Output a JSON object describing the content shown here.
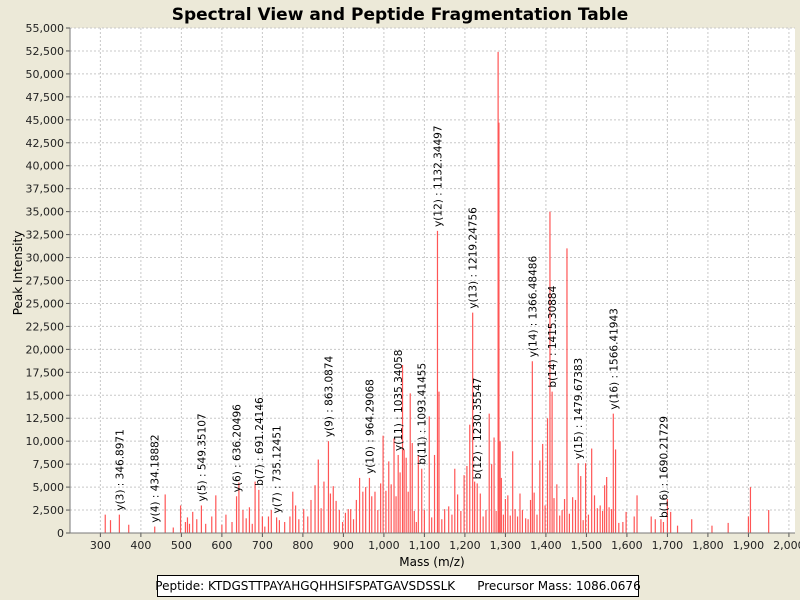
{
  "chart_data": {
    "type": "bar",
    "title": "Spectral View and Peptide Fragmentation Table",
    "xlabel": "Mass (m/z)",
    "ylabel": "Peak Intensity",
    "xlim": [
      225,
      2015
    ],
    "ylim": [
      0,
      55000
    ],
    "x_ticks": [
      300,
      400,
      500,
      600,
      700,
      800,
      900,
      1000,
      1100,
      1200,
      1300,
      1400,
      1500,
      1600,
      1700,
      1800,
      1900,
      2000
    ],
    "x_tick_labels": [
      "300",
      "400",
      "500",
      "600",
      "700",
      "800",
      "900",
      "1,000",
      "1,100",
      "1,200",
      "1,300",
      "1,400",
      "1,500",
      "1,600",
      "1,700",
      "1,800",
      "1,900",
      "2,000"
    ],
    "y_ticks": [
      0,
      2500,
      5000,
      7500,
      10000,
      12500,
      15000,
      17500,
      20000,
      22500,
      25000,
      27500,
      30000,
      32500,
      35000,
      37500,
      40000,
      42500,
      45000,
      47500,
      50000,
      52500,
      55000
    ],
    "y_tick_labels": [
      "0",
      "2,500",
      "5,000",
      "7,500",
      "10,000",
      "12,500",
      "15,000",
      "17,500",
      "20,000",
      "22,500",
      "25,000",
      "27,500",
      "30,000",
      "32,500",
      "35,000",
      "37,500",
      "40,000",
      "42,500",
      "45,000",
      "47,500",
      "50,000",
      "52,500",
      "55,000"
    ],
    "color": "#FF5555",
    "peaks": [
      [
        312,
        2000
      ],
      [
        325,
        1400
      ],
      [
        346.9,
        2000
      ],
      [
        370,
        900
      ],
      [
        434.2,
        700
      ],
      [
        460,
        4200
      ],
      [
        480,
        600
      ],
      [
        498,
        3000
      ],
      [
        510,
        1200
      ],
      [
        515,
        1700
      ],
      [
        520,
        1000
      ],
      [
        528,
        2300
      ],
      [
        538,
        1500
      ],
      [
        549.4,
        3000
      ],
      [
        560,
        1000
      ],
      [
        575,
        1800
      ],
      [
        585,
        4100
      ],
      [
        600,
        900
      ],
      [
        610,
        2000
      ],
      [
        625,
        1200
      ],
      [
        636.2,
        4000
      ],
      [
        642,
        5500
      ],
      [
        652,
        2500
      ],
      [
        660,
        1600
      ],
      [
        668,
        2800
      ],
      [
        675,
        1000
      ],
      [
        682,
        5600
      ],
      [
        691.2,
        4700
      ],
      [
        700,
        1800
      ],
      [
        706,
        700
      ],
      [
        715,
        1800
      ],
      [
        722,
        2500
      ],
      [
        735.1,
        1700
      ],
      [
        742,
        1400
      ],
      [
        755,
        1200
      ],
      [
        768,
        1800
      ],
      [
        775,
        4500
      ],
      [
        782,
        3000
      ],
      [
        790,
        1500
      ],
      [
        802,
        2600
      ],
      [
        812,
        1800
      ],
      [
        820,
        3600
      ],
      [
        830,
        5200
      ],
      [
        838,
        8000
      ],
      [
        845,
        2700
      ],
      [
        852,
        5600
      ],
      [
        863.1,
        10000
      ],
      [
        868,
        4300
      ],
      [
        875,
        5100
      ],
      [
        882,
        3500
      ],
      [
        890,
        2500
      ],
      [
        898,
        1200
      ],
      [
        905,
        2200
      ],
      [
        912,
        2600
      ],
      [
        918,
        2600
      ],
      [
        925,
        1500
      ],
      [
        932,
        3600
      ],
      [
        940,
        6000
      ],
      [
        948,
        4500
      ],
      [
        955,
        5000
      ],
      [
        964.3,
        6000
      ],
      [
        970,
        4000
      ],
      [
        978,
        4500
      ],
      [
        985,
        2500
      ],
      [
        992,
        5400
      ],
      [
        998,
        10600
      ],
      [
        1005,
        4600
      ],
      [
        1012,
        7800
      ],
      [
        1018,
        5300
      ],
      [
        1025,
        10300
      ],
      [
        1030,
        4000
      ],
      [
        1035.3,
        8500
      ],
      [
        1040,
        6600
      ],
      [
        1046,
        18300
      ],
      [
        1050,
        9100
      ],
      [
        1055,
        8200
      ],
      [
        1060,
        4500
      ],
      [
        1065,
        15200
      ],
      [
        1070,
        9800
      ],
      [
        1075,
        2400
      ],
      [
        1080,
        1200
      ],
      [
        1085,
        8500
      ],
      [
        1093.4,
        7000
      ],
      [
        1100,
        2500
      ],
      [
        1112,
        12700
      ],
      [
        1118,
        1700
      ],
      [
        1125,
        8500
      ],
      [
        1132.3,
        32900
      ],
      [
        1136,
        15400
      ],
      [
        1143,
        1500
      ],
      [
        1150,
        2600
      ],
      [
        1160,
        2900
      ],
      [
        1168,
        2000
      ],
      [
        1175,
        7000
      ],
      [
        1182,
        4200
      ],
      [
        1190,
        2400
      ],
      [
        1198,
        6300
      ],
      [
        1205,
        7300
      ],
      [
        1212,
        11800
      ],
      [
        1219.2,
        24000
      ],
      [
        1224,
        5600
      ],
      [
        1230.4,
        5400
      ],
      [
        1238,
        4300
      ],
      [
        1245,
        1800
      ],
      [
        1252,
        2500
      ],
      [
        1260,
        13000
      ],
      [
        1266,
        7500
      ],
      [
        1272,
        10400
      ],
      [
        1277,
        2400
      ],
      [
        1282,
        52400
      ],
      [
        1284,
        44700
      ],
      [
        1287,
        10000
      ],
      [
        1290,
        6000
      ],
      [
        1295,
        2000
      ],
      [
        1300,
        3700
      ],
      [
        1306,
        4100
      ],
      [
        1312,
        1900
      ],
      [
        1318,
        8900
      ],
      [
        1324,
        2600
      ],
      [
        1330,
        1800
      ],
      [
        1336,
        4300
      ],
      [
        1342,
        2500
      ],
      [
        1350,
        1600
      ],
      [
        1356,
        1500
      ],
      [
        1362,
        3600
      ],
      [
        1366.5,
        18700
      ],
      [
        1371,
        4400
      ],
      [
        1378,
        2000
      ],
      [
        1385,
        7900
      ],
      [
        1392,
        9700
      ],
      [
        1398,
        3000
      ],
      [
        1404,
        12500
      ],
      [
        1410,
        35000
      ],
      [
        1415.3,
        15400
      ],
      [
        1420,
        3800
      ],
      [
        1427,
        5300
      ],
      [
        1434,
        1900
      ],
      [
        1440,
        2500
      ],
      [
        1446,
        3700
      ],
      [
        1452,
        31000
      ],
      [
        1458,
        2100
      ],
      [
        1466,
        3900
      ],
      [
        1473,
        3600
      ],
      [
        1479.7,
        7600
      ],
      [
        1486,
        6200
      ],
      [
        1492,
        1400
      ],
      [
        1498,
        7600
      ],
      [
        1505,
        2000
      ],
      [
        1513,
        9200
      ],
      [
        1520,
        4100
      ],
      [
        1527,
        2700
      ],
      [
        1534,
        3000
      ],
      [
        1540,
        2400
      ],
      [
        1545,
        5200
      ],
      [
        1550,
        6100
      ],
      [
        1556,
        2800
      ],
      [
        1562,
        2600
      ],
      [
        1566.4,
        13000
      ],
      [
        1572,
        9100
      ],
      [
        1580,
        1100
      ],
      [
        1590,
        1200
      ],
      [
        1598,
        2300
      ],
      [
        1618,
        1800
      ],
      [
        1625,
        4100
      ],
      [
        1660,
        1800
      ],
      [
        1670,
        1500
      ],
      [
        1684,
        1500
      ],
      [
        1690.2,
        1200
      ],
      [
        1700,
        3700
      ],
      [
        1708,
        2300
      ],
      [
        1725,
        800
      ],
      [
        1760,
        1500
      ],
      [
        1810,
        800
      ],
      [
        1850,
        1100
      ],
      [
        1900,
        1800
      ],
      [
        1905,
        5000
      ],
      [
        1950,
        2500
      ]
    ],
    "annotations": [
      {
        "x": 346.9,
        "y": 2000,
        "text": "y(3) : 346.8971"
      },
      {
        "x": 434.2,
        "y": 700,
        "text": "y(4) : 434.18882"
      },
      {
        "x": 549.4,
        "y": 3000,
        "text": "y(5) : 549.35107"
      },
      {
        "x": 636.2,
        "y": 4000,
        "text": "y(6) : 636.20496"
      },
      {
        "x": 691.2,
        "y": 4700,
        "text": "b(7) : 691.24146"
      },
      {
        "x": 735.1,
        "y": 1700,
        "text": "y(7) : 735.12451"
      },
      {
        "x": 863.1,
        "y": 10000,
        "text": "y(9) : 863.0874"
      },
      {
        "x": 964.3,
        "y": 6000,
        "text": "y(10) : 964.29068"
      },
      {
        "x": 1035.3,
        "y": 8500,
        "text": "y(11) : 1035.34058"
      },
      {
        "x": 1093.4,
        "y": 7000,
        "text": "b(11) : 1093.41455"
      },
      {
        "x": 1132.3,
        "y": 32900,
        "text": "y(12) : 1132.34497"
      },
      {
        "x": 1219.2,
        "y": 24000,
        "text": "y(13) : 1219.24756"
      },
      {
        "x": 1230.4,
        "y": 5400,
        "text": "b(12) : 1230.35547"
      },
      {
        "x": 1366.5,
        "y": 18700,
        "text": "y(14) : 1366.48486"
      },
      {
        "x": 1415.3,
        "y": 15400,
        "text": "b(14) : 1415.30884"
      },
      {
        "x": 1479.7,
        "y": 7600,
        "text": "y(15) : 1479.67383"
      },
      {
        "x": 1566.4,
        "y": 13000,
        "text": "y(16) : 1566.41943"
      },
      {
        "x": 1690.2,
        "y": 1200,
        "text": "b(16) : 1690.21729"
      }
    ]
  },
  "footer": {
    "peptide": "Peptide: KTDGSTTPAYAHGQHHSIFSPATGAVSDSSLK",
    "precursor": "Precursor Mass: 1086.0676"
  }
}
